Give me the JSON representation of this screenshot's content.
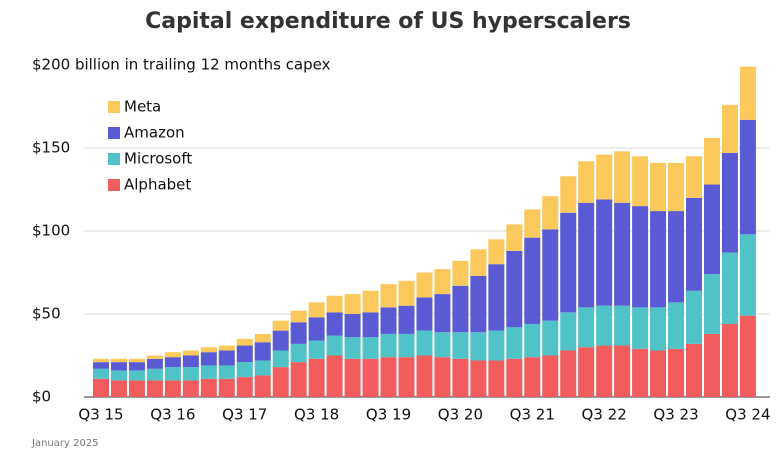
{
  "chart_data": {
    "type": "stacked_bar",
    "title": "Capital expenditure of US hyperscalers",
    "y_label": "$200 billion in trailing 12 months capex",
    "footnote": "January 2025",
    "categories": [
      "Q3 15",
      null,
      null,
      null,
      "Q3 16",
      null,
      null,
      null,
      "Q3 17",
      null,
      null,
      null,
      "Q3 18",
      null,
      null,
      null,
      "Q3 19",
      null,
      null,
      null,
      "Q3 20",
      null,
      null,
      null,
      "Q3 21",
      null,
      null,
      null,
      "Q3 22",
      null,
      null,
      null,
      "Q3 23",
      null,
      null,
      null,
      "Q3 24"
    ],
    "series": [
      {
        "name": "Alphabet",
        "color": "#f25c5c",
        "values": [
          11,
          10,
          10,
          10,
          10,
          10,
          11,
          11,
          12,
          13,
          18,
          21,
          23,
          25,
          23,
          23,
          24,
          24,
          25,
          24,
          23,
          22,
          22,
          23,
          24,
          25,
          28,
          30,
          31,
          31,
          29,
          28,
          29,
          32,
          38,
          44,
          49
        ]
      },
      {
        "name": "Microsoft",
        "color": "#4fc3c8",
        "values": [
          6,
          6,
          6,
          7,
          8,
          8,
          8,
          8,
          9,
          9,
          10,
          11,
          11,
          12,
          13,
          13,
          14,
          14,
          15,
          15,
          16,
          17,
          18,
          19,
          20,
          21,
          23,
          24,
          24,
          24,
          25,
          26,
          28,
          32,
          36,
          43,
          49
        ]
      },
      {
        "name": "Amazon",
        "color": "#5a5bd4",
        "values": [
          4,
          5,
          5,
          6,
          6,
          7,
          8,
          9,
          10,
          11,
          12,
          13,
          14,
          14,
          14,
          15,
          16,
          17,
          20,
          23,
          28,
          34,
          40,
          46,
          52,
          55,
          60,
          63,
          64,
          62,
          61,
          58,
          55,
          56,
          54,
          60,
          69
        ]
      },
      {
        "name": "Meta",
        "color": "#fbc95b",
        "values": [
          2,
          2,
          2,
          2,
          3,
          3,
          3,
          3,
          4,
          5,
          6,
          7,
          9,
          10,
          12,
          13,
          14,
          15,
          15,
          15,
          15,
          16,
          15,
          16,
          17,
          20,
          22,
          25,
          27,
          31,
          30,
          29,
          29,
          25,
          28,
          29,
          32
        ]
      }
    ],
    "ylim": [
      0,
      200
    ],
    "yticks": [
      {
        "value": 0,
        "label": "$0"
      },
      {
        "value": 50,
        "label": "$50"
      },
      {
        "value": 100,
        "label": "$100"
      },
      {
        "value": 150,
        "label": "$150"
      }
    ],
    "grid": true,
    "legend": "upper left"
  }
}
